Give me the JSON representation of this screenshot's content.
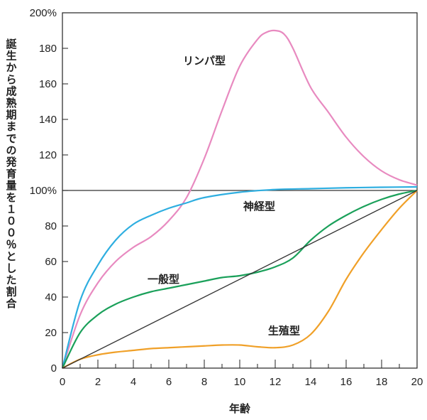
{
  "chart_data": {
    "type": "line",
    "xlabel": "年齢",
    "ylabel": "誕生から成熟期までの発育量を１００％とした割合",
    "xlim": [
      0,
      20
    ],
    "ylim": [
      0,
      200
    ],
    "x_ticks": [
      0,
      2,
      4,
      6,
      8,
      10,
      12,
      14,
      16,
      18,
      20
    ],
    "y_ticks": [
      0,
      20,
      40,
      60,
      80,
      100,
      120,
      140,
      160,
      180,
      200
    ],
    "y_tick_labels": [
      "0",
      "20",
      "40",
      "60",
      "80",
      "100%",
      "120",
      "140",
      "160",
      "180",
      "200%"
    ],
    "grid": false,
    "reference_line_y": 100,
    "series": [
      {
        "name": "リンパ型",
        "color": "#e88ac0",
        "x": [
          0,
          1,
          2,
          3,
          4,
          5,
          6,
          7,
          8,
          9,
          10,
          11,
          11.5,
          12,
          12.5,
          13,
          14,
          15,
          16,
          17,
          18,
          19,
          20
        ],
        "y": [
          0,
          30,
          48,
          60,
          68,
          74,
          83,
          96,
          118,
          145,
          170,
          185,
          189,
          190,
          188,
          180,
          158,
          144,
          130,
          119,
          111,
          106,
          103
        ]
      },
      {
        "name": "神経型",
        "color": "#2eaee0",
        "x": [
          0,
          1,
          2,
          3,
          4,
          5,
          6,
          7,
          8,
          10,
          12,
          14,
          16,
          18,
          20
        ],
        "y": [
          0,
          38,
          58,
          72,
          81,
          86,
          90,
          93,
          96,
          99,
          100.5,
          101,
          101.5,
          101.8,
          102
        ]
      },
      {
        "name": "一般型",
        "color": "#1aa05a",
        "x": [
          0,
          1,
          2,
          3,
          4,
          5,
          6,
          7,
          8,
          9,
          10,
          11,
          12,
          13,
          14,
          15,
          16,
          17,
          18,
          19,
          20
        ],
        "y": [
          0,
          20,
          30,
          36,
          40,
          43,
          45,
          47,
          49,
          51,
          52,
          54,
          57,
          62,
          72,
          80,
          86,
          91,
          95,
          98,
          100
        ]
      },
      {
        "name": "生殖型",
        "color": "#f0a028",
        "x": [
          0,
          1,
          2,
          3,
          4,
          5,
          6,
          7,
          8,
          9,
          10,
          11,
          12,
          13,
          14,
          15,
          16,
          17,
          18,
          19,
          20
        ],
        "y": [
          0,
          5,
          7.5,
          9,
          10,
          11,
          11.5,
          12,
          12.5,
          13,
          13,
          12,
          11.5,
          13,
          19,
          32,
          50,
          65,
          78,
          90,
          100
        ]
      },
      {
        "name": "",
        "color": "#333333",
        "x": [
          0,
          20
        ],
        "y": [
          0,
          100
        ]
      }
    ]
  }
}
